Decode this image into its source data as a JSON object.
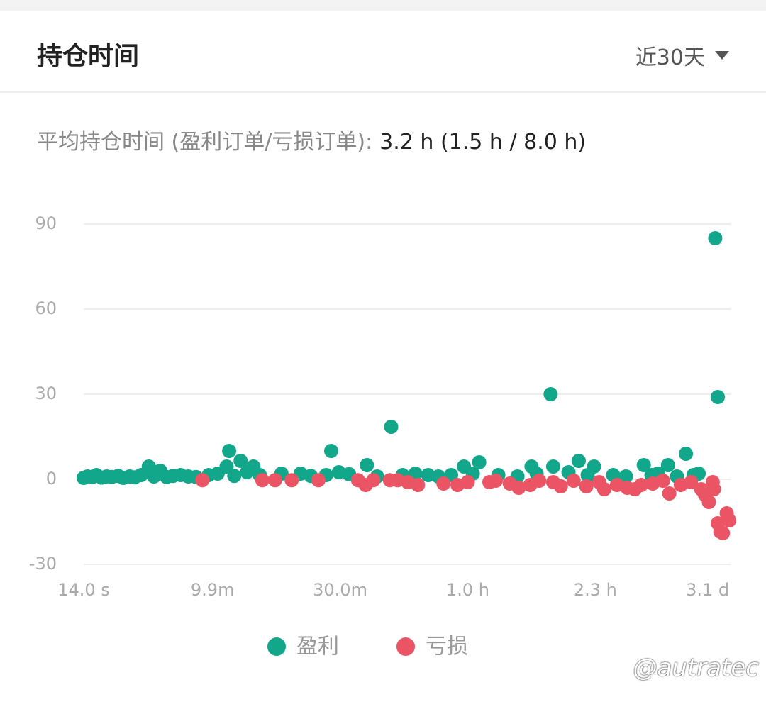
{
  "header": {
    "title": "持仓时间",
    "period": "近30天"
  },
  "summary": {
    "label": "平均持仓时间 (盈利订单/亏损订单):",
    "value": "3.2 h (1.5 h / 8.0 h)"
  },
  "watermark": "@autratec",
  "chart_data": {
    "type": "scatter",
    "xlim": [
      0,
      5.07
    ],
    "xticks": [
      {
        "value": 0,
        "label": "14.0 s"
      },
      {
        "value": 1.01,
        "label": "9.9m"
      },
      {
        "value": 2.01,
        "label": "30.0m"
      },
      {
        "value": 3.01,
        "label": "1.0 h"
      },
      {
        "value": 4.01,
        "label": "2.3 h"
      },
      {
        "value": 4.89,
        "label": "3.1 d"
      }
    ],
    "ylim": [
      -30,
      90
    ],
    "yticks": [
      90,
      60,
      30,
      0,
      -30
    ],
    "grid": true,
    "series": [
      {
        "name": "盈利",
        "color": "#12a68a",
        "x": [
          0.0,
          0.03,
          0.07,
          0.1,
          0.14,
          0.18,
          0.22,
          0.27,
          0.31,
          0.36,
          0.4,
          0.45,
          0.55,
          0.65,
          0.7,
          0.76,
          0.82,
          0.88,
          0.98,
          1.05,
          1.18,
          1.28,
          1.38,
          1.55,
          1.7,
          1.78,
          1.9,
          2.0,
          2.08,
          2.3,
          2.5,
          2.6,
          2.7,
          2.78,
          2.88,
          3.05,
          3.25,
          3.4,
          3.55,
          3.8,
          3.95,
          4.15,
          4.25,
          4.45,
          4.5,
          4.65,
          4.78,
          4.82,
          1.14,
          1.94,
          2.41,
          3.66,
          4.95,
          4.97,
          4.72,
          4.58,
          4.39,
          3.88,
          3.1,
          2.22,
          1.33,
          1.23,
          1.12,
          0.51,
          0.6,
          3.51,
          3.68,
          4.0,
          2.98
        ],
        "values": [
          0.5,
          1,
          0.8,
          1.5,
          0.6,
          1,
          0.8,
          1.2,
          0.5,
          1,
          0.7,
          1.5,
          1,
          0.8,
          1.2,
          1.5,
          1,
          0.8,
          1.5,
          2,
          1.2,
          2.5,
          1.5,
          2,
          2,
          1.2,
          1.5,
          2.5,
          1.8,
          1,
          1.5,
          2,
          1.5,
          1,
          1.5,
          2,
          1.5,
          1,
          2,
          2.5,
          1.5,
          1.5,
          1,
          1.5,
          2,
          1,
          1.5,
          2,
          10,
          10,
          18.5,
          30,
          85,
          29,
          9,
          5,
          5,
          6.5,
          6,
          5,
          4.5,
          6.5,
          4.5,
          4.5,
          3,
          4.5,
          4.5,
          4.5,
          4.5
        ]
      },
      {
        "name": "亏损",
        "color": "#ea5464",
        "x": [
          0.93,
          1.4,
          1.5,
          1.63,
          1.84,
          2.15,
          2.21,
          2.27,
          2.4,
          2.46,
          2.54,
          2.62,
          2.82,
          2.93,
          3.01,
          3.18,
          3.23,
          3.34,
          3.41,
          3.5,
          3.57,
          3.68,
          3.74,
          3.84,
          3.94,
          4.04,
          4.08,
          4.18,
          4.26,
          4.32,
          4.37,
          4.46,
          4.54,
          4.59,
          4.68,
          4.76,
          4.84,
          4.87,
          4.9,
          4.93,
          4.94,
          4.97,
          5.01,
          5.04,
          5.06,
          4.99
        ],
        "values": [
          -0.3,
          -0.3,
          -0.3,
          -0.3,
          -0.3,
          -0.3,
          -2,
          -0.3,
          -0.3,
          -0.3,
          -1,
          -2,
          -1.5,
          -2,
          -1,
          -1,
          -0.5,
          -1.5,
          -3,
          -2,
          -0.5,
          -1,
          -2.5,
          -0.5,
          -2.5,
          -1,
          -3.5,
          -2,
          -3,
          -3.5,
          -2,
          -1.5,
          -0.5,
          -5,
          -2,
          -1,
          -3.5,
          -5.5,
          -8,
          -1,
          -3.5,
          -15.5,
          -19,
          -12,
          -14.5,
          -18.5
        ]
      }
    ]
  }
}
